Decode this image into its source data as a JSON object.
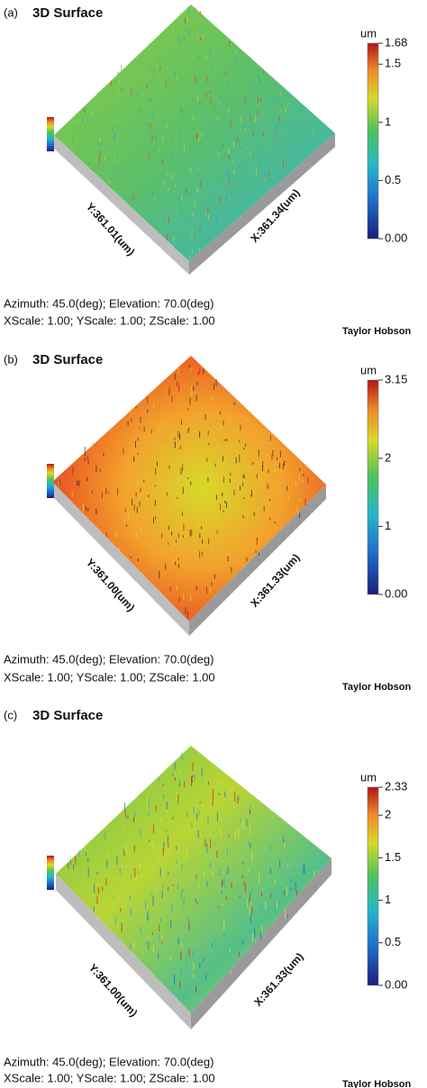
{
  "panels": [
    {
      "label": "(a)",
      "title": "3D Surface",
      "unit": "um",
      "zlim": [
        0,
        1.68
      ],
      "ticks": [
        {
          "value": 0,
          "label": "0.00"
        },
        0.5,
        1,
        1.5,
        1.68
      ],
      "y_axis": "Y:361.01(um)",
      "x_axis": "X:361.34(um)",
      "info": [
        "Azimuth: 45.0(deg); Elevation: 70.0(deg)",
        "XScale: 1.00; YScale: 1.00; ZScale: 1.00"
      ],
      "brand": "Taylor Hobson"
    },
    {
      "label": "(b)",
      "title": "3D Surface",
      "unit": "um",
      "zlim": [
        0,
        3.15
      ],
      "ticks": [
        {
          "value": 0,
          "label": "0.00"
        },
        1,
        2,
        3.15
      ],
      "y_axis": "Y:361.00(um)",
      "x_axis": "X:361.33(um)",
      "info": [
        "Azimuth: 45.0(deg); Elevation: 70.0(deg)",
        "XScale: 1.00; YScale: 1.00; ZScale: 1.00"
      ],
      "brand": "Taylor Hobson"
    },
    {
      "label": "(c)",
      "title": "3D Surface",
      "unit": "um",
      "zlim": [
        0,
        2.33
      ],
      "ticks": [
        {
          "value": 0,
          "label": "0.00"
        },
        0.5,
        1,
        1.5,
        2,
        2.33
      ],
      "y_axis": "Y:361.00(um)",
      "x_axis": "X:361.33(um)",
      "info": [
        "Azimuth: 45.0(deg); Elevation: 70.0(deg)",
        "XScale: 1.00; YScale: 1.00; ZScale: 1.00"
      ],
      "brand": "Taylor Hobson"
    }
  ]
}
